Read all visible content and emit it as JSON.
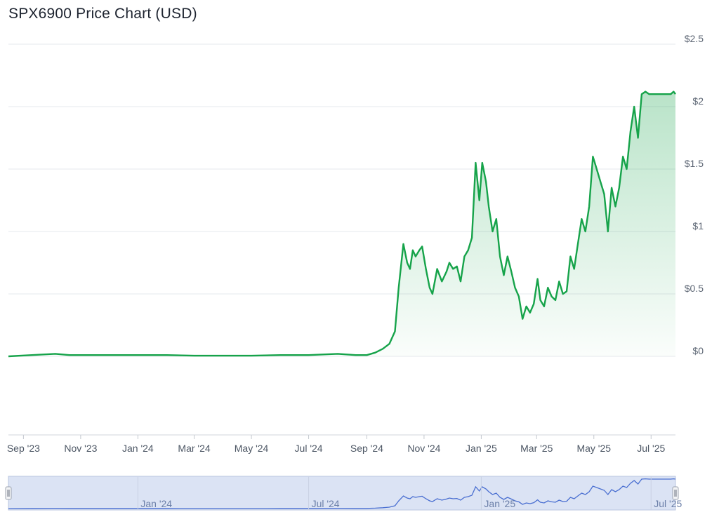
{
  "title": "SPX6900 Price Chart (USD)",
  "colors": {
    "line": "#16a34a",
    "fill_top": "#16a34a",
    "navigator_line": "#4a6fd1",
    "navigator_fill": "#dbe3f4",
    "grid": "#e6e8ec"
  },
  "chart_data": {
    "type": "area",
    "title": "SPX6900 Price Chart (USD)",
    "xlabel": "",
    "ylabel": "",
    "ylim": [
      0,
      2.5
    ],
    "ylim_visible": [
      -0.62,
      2.5
    ],
    "yticks": [
      0,
      0.5,
      1,
      1.5,
      2,
      2.5
    ],
    "ytick_labels": [
      "$0",
      "$0.5",
      "$1",
      "$1.5",
      "$2",
      "$2.5"
    ],
    "xtick_labels": [
      "Sep '23",
      "Nov '23",
      "Jan '24",
      "Mar '24",
      "May '24",
      "Jul '24",
      "Sep '24",
      "Nov '24",
      "Jan '25",
      "Mar '25",
      "May '25",
      "Jul '25"
    ],
    "xtick_dates": [
      "2023-09-01",
      "2023-11-01",
      "2024-01-01",
      "2024-03-01",
      "2024-05-01",
      "2024-07-01",
      "2024-09-01",
      "2024-11-01",
      "2025-01-01",
      "2025-03-01",
      "2025-05-01",
      "2025-07-01"
    ],
    "x_range": [
      "2023-08-16",
      "2025-07-27"
    ],
    "grid": true,
    "legend": "none",
    "series": [
      {
        "x": [
          "2023-08-16",
          "2023-09-10",
          "2023-10-05",
          "2023-10-20",
          "2023-11-05",
          "2023-12-01",
          "2024-01-01",
          "2024-02-01",
          "2024-03-01",
          "2024-04-01",
          "2024-05-01",
          "2024-06-01",
          "2024-07-01",
          "2024-08-01",
          "2024-08-20",
          "2024-09-01",
          "2024-09-10",
          "2024-09-18",
          "2024-09-25",
          "2024-10-01",
          "2024-10-05",
          "2024-10-10",
          "2024-10-14",
          "2024-10-17",
          "2024-10-20",
          "2024-10-23",
          "2024-10-27",
          "2024-10-30",
          "2024-11-03",
          "2024-11-07",
          "2024-11-10",
          "2024-11-15",
          "2024-11-20",
          "2024-11-25",
          "2024-11-28",
          "2024-12-02",
          "2024-12-06",
          "2024-12-10",
          "2024-12-14",
          "2024-12-18",
          "2024-12-22",
          "2024-12-26",
          "2024-12-30",
          "2025-01-02",
          "2025-01-06",
          "2025-01-09",
          "2025-01-13",
          "2025-01-17",
          "2025-01-21",
          "2025-01-25",
          "2025-01-29",
          "2025-02-02",
          "2025-02-06",
          "2025-02-10",
          "2025-02-14",
          "2025-02-18",
          "2025-02-22",
          "2025-02-26",
          "2025-03-02",
          "2025-03-05",
          "2025-03-09",
          "2025-03-13",
          "2025-03-17",
          "2025-03-21",
          "2025-03-25",
          "2025-03-29",
          "2025-04-02",
          "2025-04-06",
          "2025-04-10",
          "2025-04-14",
          "2025-04-18",
          "2025-04-22",
          "2025-04-26",
          "2025-04-30",
          "2025-05-04",
          "2025-05-08",
          "2025-05-12",
          "2025-05-16",
          "2025-05-20",
          "2025-05-24",
          "2025-05-28",
          "2025-06-01",
          "2025-06-05",
          "2025-06-09",
          "2025-06-13",
          "2025-06-17",
          "2025-06-21",
          "2025-06-25",
          "2025-06-29",
          "2025-07-03",
          "2025-07-07",
          "2025-07-11",
          "2025-07-15",
          "2025-07-19",
          "2025-07-22",
          "2025-07-25",
          "2025-07-27"
        ],
        "y": [
          0.0,
          0.01,
          0.02,
          0.01,
          0.01,
          0.01,
          0.01,
          0.01,
          0.005,
          0.005,
          0.005,
          0.01,
          0.01,
          0.02,
          0.01,
          0.01,
          0.03,
          0.06,
          0.1,
          0.2,
          0.55,
          0.9,
          0.75,
          0.7,
          0.85,
          0.8,
          0.85,
          0.88,
          0.7,
          0.55,
          0.5,
          0.7,
          0.6,
          0.68,
          0.75,
          0.7,
          0.72,
          0.6,
          0.8,
          0.85,
          0.95,
          1.55,
          1.25,
          1.55,
          1.4,
          1.2,
          1.0,
          1.1,
          0.8,
          0.65,
          0.8,
          0.68,
          0.55,
          0.48,
          0.3,
          0.4,
          0.35,
          0.42,
          0.62,
          0.45,
          0.4,
          0.55,
          0.48,
          0.45,
          0.6,
          0.5,
          0.52,
          0.8,
          0.7,
          0.9,
          1.1,
          1.0,
          1.2,
          1.6,
          1.5,
          1.4,
          1.3,
          1.0,
          1.35,
          1.2,
          1.35,
          1.6,
          1.5,
          1.8,
          2.0,
          1.75,
          2.1,
          2.12,
          2.1,
          2.1,
          2.1,
          2.1,
          2.1,
          2.1,
          2.1,
          2.12,
          2.1
        ]
      }
    ],
    "navigator": {
      "xtick_labels": [
        "Jan '24",
        "Jul '24",
        "Jan '25",
        "Jul '25"
      ],
      "xtick_dates": [
        "2024-01-01",
        "2024-07-01",
        "2025-01-01",
        "2025-07-01"
      ]
    }
  }
}
